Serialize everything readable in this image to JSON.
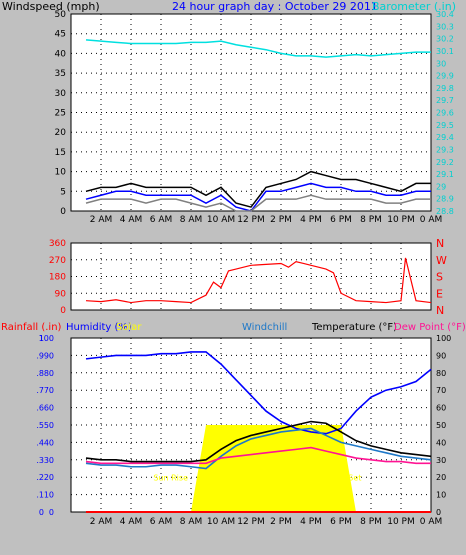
{
  "chart_data": [
    {
      "type": "line",
      "title": "24 hour graph day : October 29 2011",
      "ylabel": "Windspeed (mph)",
      "y2label": "Barometer (.in)",
      "ylim": [
        0,
        50
      ],
      "y2lim": [
        28.8,
        30.4
      ],
      "yticks": [
        0,
        5,
        10,
        15,
        20,
        25,
        30,
        35,
        40,
        45,
        50
      ],
      "y2ticks": [
        "28.8",
        "28.9",
        "29",
        "29.1",
        "29.2",
        "29.3",
        "29.4",
        "29.5",
        "29.6",
        "29.7",
        "29.8",
        "29.9",
        "30",
        "30.1",
        "30.2",
        "30.3",
        "30.4"
      ],
      "xticks": [
        "2 AM",
        "4 AM",
        "6 AM",
        "8 AM",
        "10 AM",
        "12 PM",
        "2 PM",
        "4 PM",
        "6 PM",
        "8 PM",
        "10 PM",
        "0 AM"
      ],
      "x_hours": [
        1,
        2,
        3,
        4,
        5,
        6,
        7,
        8,
        9,
        10,
        11,
        12,
        13,
        14,
        15,
        16,
        17,
        18,
        19,
        20,
        21,
        22,
        23,
        24
      ],
      "grid": true,
      "series": [
        {
          "key": "barometer",
          "color": "#00e0e0",
          "axis": "right",
          "values": [
            30.19,
            30.18,
            30.17,
            30.16,
            30.16,
            30.16,
            30.16,
            30.17,
            30.17,
            30.18,
            30.15,
            30.13,
            30.11,
            30.08,
            30.06,
            30.06,
            30.05,
            30.06,
            30.07,
            30.06,
            30.07,
            30.08,
            30.09,
            30.09
          ]
        },
        {
          "key": "gust",
          "color": "#000000",
          "axis": "left",
          "values": [
            5,
            6,
            6,
            7,
            6,
            6,
            6,
            6,
            4,
            6,
            2,
            1,
            6,
            7,
            8,
            10,
            9,
            8,
            8,
            7,
            6,
            5,
            7,
            7
          ]
        },
        {
          "key": "avg_wind",
          "color": "#0000ff",
          "axis": "left",
          "values": [
            3,
            4,
            5,
            5,
            4,
            4,
            4,
            4,
            2,
            4,
            1,
            0,
            5,
            5,
            6,
            7,
            6,
            6,
            5,
            5,
            4,
            4,
            5,
            5
          ]
        },
        {
          "key": "wind_low",
          "color": "#808080",
          "axis": "left",
          "values": [
            2,
            3,
            3,
            3,
            2,
            3,
            3,
            2,
            1,
            2,
            0,
            0,
            3,
            3,
            3,
            4,
            3,
            3,
            3,
            3,
            2,
            2,
            3,
            3
          ]
        }
      ]
    },
    {
      "type": "scatter",
      "ylabel_right": [
        "N",
        "W",
        "S",
        "E",
        "N"
      ],
      "ylim": [
        0,
        360
      ],
      "yticks": [
        0,
        90,
        180,
        270,
        360
      ],
      "xticks": [
        "2 AM",
        "4 AM",
        "6 AM",
        "8 AM",
        "10 AM",
        "12 PM",
        "2 PM",
        "4 PM",
        "6 PM",
        "8 PM",
        "10 PM",
        "0 AM"
      ],
      "grid": true,
      "series": [
        {
          "key": "wind_direction",
          "color": "#ff0000",
          "x_hours": [
            1,
            2,
            3,
            4,
            5,
            6,
            7,
            8,
            8.5,
            9,
            9.5,
            10,
            10.5,
            11,
            12,
            13,
            14,
            14.5,
            15,
            15.5,
            16,
            17,
            17.5,
            18,
            19,
            20,
            21,
            22,
            22.3,
            23,
            24
          ],
          "values": [
            50,
            45,
            55,
            40,
            50,
            50,
            45,
            40,
            60,
            80,
            150,
            120,
            210,
            220,
            240,
            245,
            250,
            230,
            260,
            250,
            240,
            220,
            200,
            90,
            50,
            45,
            40,
            50,
            280,
            50,
            40
          ]
        }
      ]
    },
    {
      "type": "line",
      "ylabels": [
        "Rainfall (.in)",
        "Humidity (%)",
        "Solar",
        "Windchill",
        "Temperature (°F)",
        "Dew Point (°F)"
      ],
      "ylim_left": [
        0,
        100
      ],
      "yticks_left": [
        0,
        10,
        20,
        30,
        40,
        50,
        60,
        70,
        80,
        90,
        100
      ],
      "rain_ticks": [
        "0",
        ".1",
        ".2",
        ".3",
        ".4",
        ".5",
        ".6",
        ".7",
        ".8",
        ".9",
        "1"
      ],
      "ylim_right": [
        0,
        100
      ],
      "yticks_right": [
        0,
        10,
        20,
        30,
        40,
        50,
        60,
        70,
        80,
        90,
        100
      ],
      "xticks": [
        "2 AM",
        "4 AM",
        "6 AM",
        "8 AM",
        "10 AM",
        "12 PM",
        "2 PM",
        "4 PM",
        "6 PM",
        "8 PM",
        "10 PM",
        "0 AM"
      ],
      "x_hours": [
        1,
        2,
        3,
        4,
        5,
        6,
        7,
        8,
        9,
        10,
        11,
        12,
        13,
        14,
        15,
        16,
        17,
        18,
        19,
        20,
        21,
        22,
        23,
        24
      ],
      "annotations": [
        "Sun Rise",
        "Sun Set"
      ],
      "grid": true,
      "series": [
        {
          "key": "humidity",
          "color": "#0000ff",
          "values": [
            88,
            89,
            90,
            90,
            90,
            91,
            91,
            92,
            92,
            85,
            76,
            67,
            58,
            52,
            48,
            46,
            45,
            48,
            58,
            66,
            70,
            72,
            75,
            82
          ]
        },
        {
          "key": "solar",
          "color": "#ffff00",
          "values": [
            0,
            0,
            0,
            0,
            0,
            0,
            0,
            0,
            50,
            50,
            50,
            50,
            50,
            50,
            50,
            50,
            50,
            50,
            0,
            0,
            0,
            0,
            0,
            0
          ]
        },
        {
          "key": "windchill",
          "color": "#1e78c8",
          "values": [
            28,
            27,
            27,
            26,
            26,
            27,
            27,
            26,
            25,
            32,
            38,
            42,
            44,
            46,
            47,
            48,
            44,
            40,
            38,
            36,
            34,
            32,
            31,
            30
          ]
        },
        {
          "key": "temperature",
          "color": "#000000",
          "values": [
            31,
            30,
            30,
            29,
            29,
            29,
            29,
            29,
            30,
            36,
            41,
            44,
            46,
            48,
            50,
            52,
            51,
            46,
            41,
            38,
            36,
            34,
            33,
            32
          ]
        },
        {
          "key": "dew_point",
          "color": "#ff1493",
          "values": [
            29,
            28,
            28,
            28,
            28,
            28,
            28,
            28,
            28,
            31,
            32,
            33,
            34,
            35,
            36,
            37,
            35,
            33,
            31,
            30,
            29,
            29,
            28,
            28
          ]
        },
        {
          "key": "rainfall",
          "color": "#ff0000",
          "values": [
            0,
            0,
            0,
            0,
            0,
            0,
            0,
            0,
            0,
            0,
            0,
            0,
            0,
            0,
            0,
            0,
            0,
            0,
            0,
            0,
            0,
            0,
            0,
            0
          ]
        }
      ]
    }
  ]
}
